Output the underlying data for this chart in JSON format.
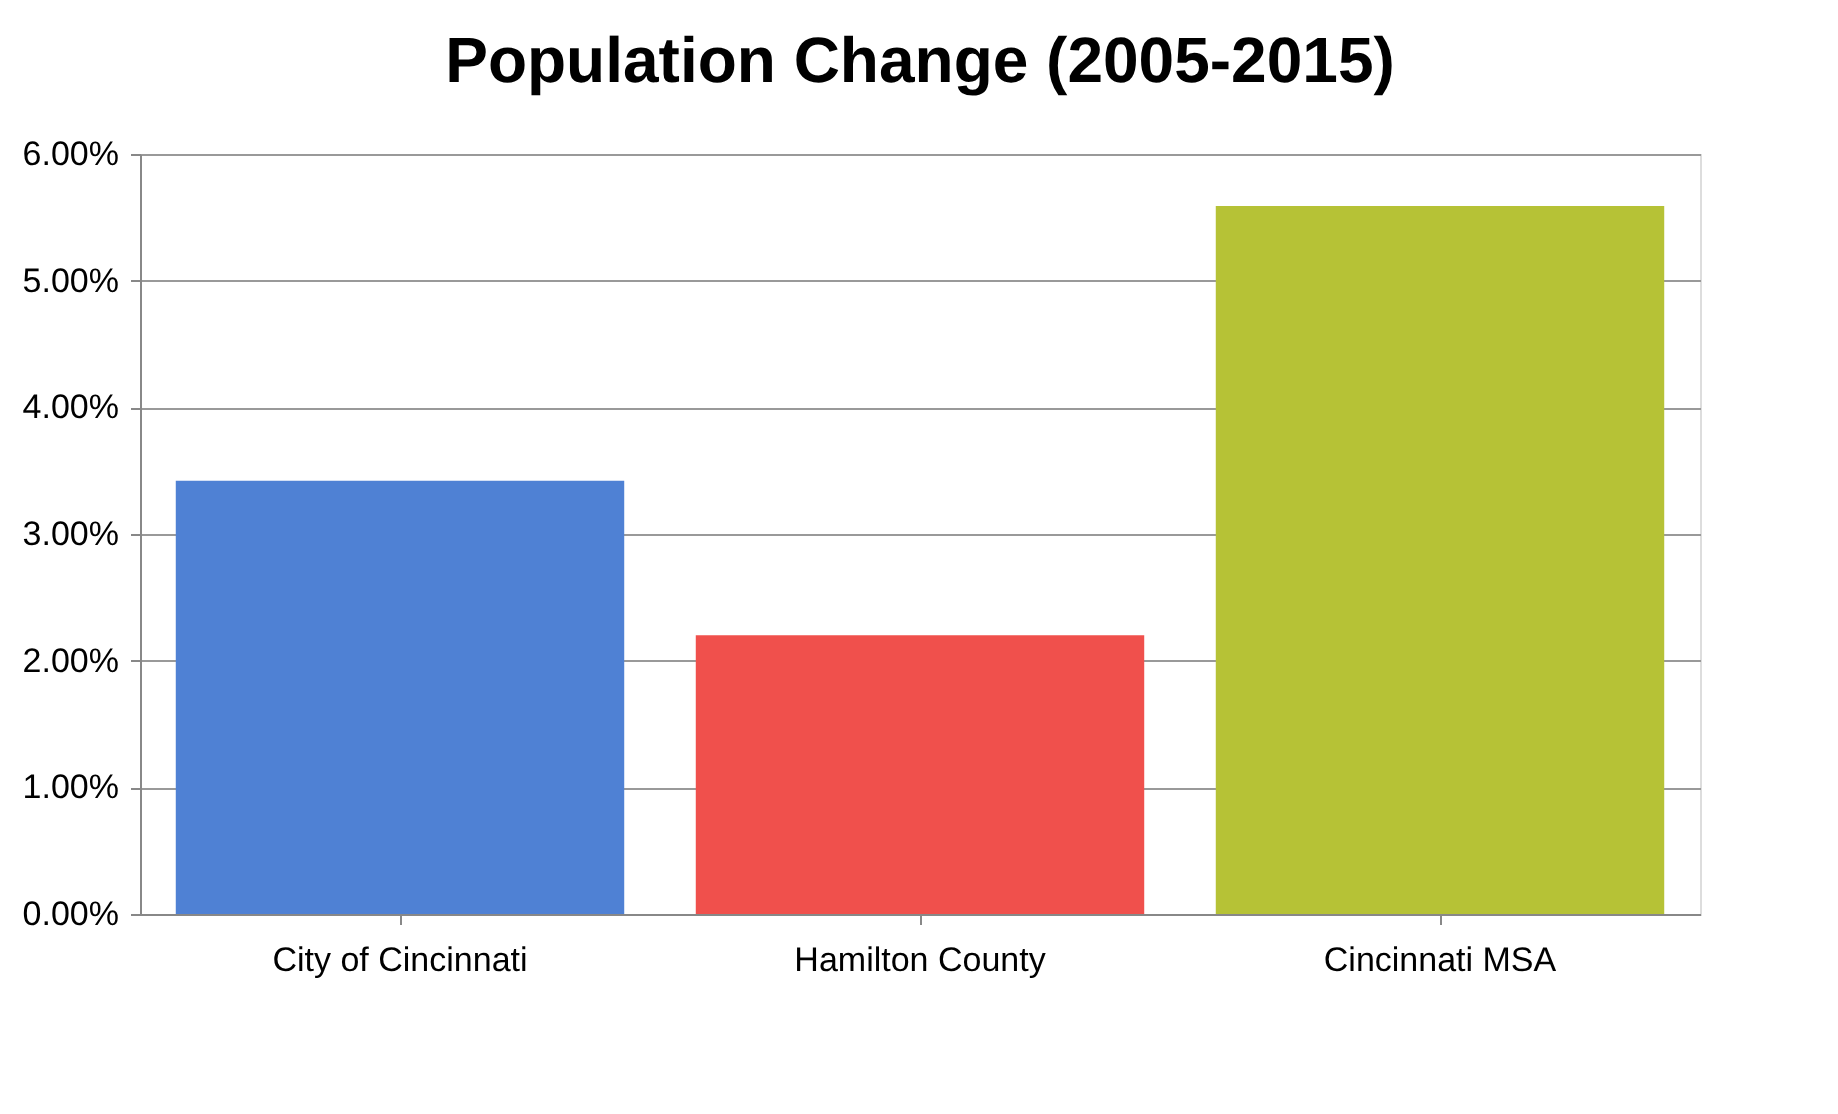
{
  "chart_data": {
    "type": "bar",
    "title": "Population Change (2005-2015)",
    "categories": [
      "City of Cincinnati",
      "Hamilton County",
      "Cincinnati MSA"
    ],
    "values": [
      3.42,
      2.2,
      5.59
    ],
    "colors": [
      "#4f81d4",
      "#f0504c",
      "#b6c236"
    ],
    "ylim": [
      0,
      6
    ],
    "yticks": [
      {
        "value": 0,
        "label": "0.00%"
      },
      {
        "value": 1,
        "label": "1.00%"
      },
      {
        "value": 2,
        "label": "2.00%"
      },
      {
        "value": 3,
        "label": "3.00%"
      },
      {
        "value": 4,
        "label": "4.00%"
      },
      {
        "value": 5,
        "label": "5.00%"
      },
      {
        "value": 6,
        "label": "6.00%"
      }
    ],
    "grid": "y"
  }
}
